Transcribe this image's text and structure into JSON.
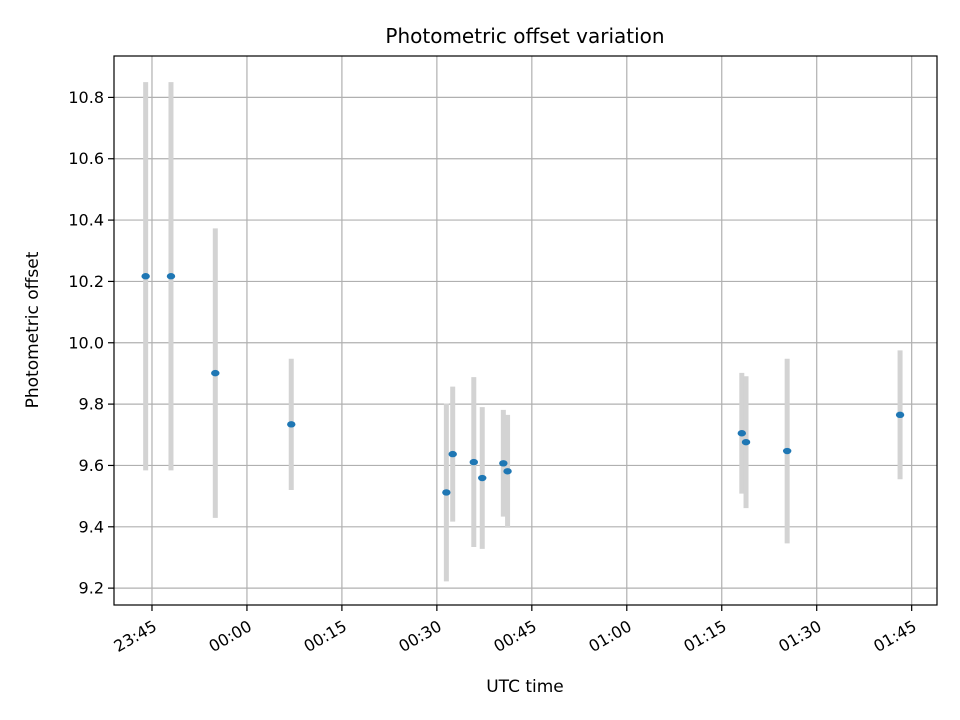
{
  "chart_data": {
    "type": "scatter",
    "title": "Photometric offset variation",
    "xlabel": "UTC time",
    "ylabel": "Photometric offset",
    "x_ticks": [
      "23:45",
      "00:00",
      "00:15",
      "00:30",
      "00:45",
      "01:00",
      "01:15",
      "01:30",
      "01:45"
    ],
    "y_ticks": [
      "9.2",
      "9.4",
      "9.6",
      "9.8",
      "10.0",
      "10.2",
      "10.4",
      "10.6",
      "10.8"
    ],
    "xlim": [
      "23:39",
      "01:49"
    ],
    "ylim": [
      9.145,
      10.935
    ],
    "grid": true,
    "colors": {
      "point": "#1f77b4",
      "errorbar": "#d3d3d3",
      "grid": "#b0b0b0"
    },
    "points": [
      {
        "t": "23:44",
        "y": 10.217,
        "err": 0.633
      },
      {
        "t": "23:48",
        "y": 10.217,
        "err": 0.633
      },
      {
        "t": "23:55",
        "y": 9.901,
        "err": 0.472
      },
      {
        "t": "00:07",
        "y": 9.734,
        "err": 0.214
      },
      {
        "t": "00:31:30",
        "y": 9.512,
        "err": 0.29
      },
      {
        "t": "00:32:30",
        "y": 9.637,
        "err": 0.22
      },
      {
        "t": "00:35:50",
        "y": 9.611,
        "err": 0.277
      },
      {
        "t": "00:37:10",
        "y": 9.559,
        "err": 0.231
      },
      {
        "t": "00:40:30",
        "y": 9.607,
        "err": 0.174
      },
      {
        "t": "00:41:10",
        "y": 9.581,
        "err": 0.184
      },
      {
        "t": "01:18:10",
        "y": 9.705,
        "err": 0.197
      },
      {
        "t": "01:18:50",
        "y": 9.676,
        "err": 0.215
      },
      {
        "t": "01:25:20",
        "y": 9.647,
        "err": 0.301
      },
      {
        "t": "01:43:10",
        "y": 9.765,
        "err": 0.21
      }
    ]
  }
}
